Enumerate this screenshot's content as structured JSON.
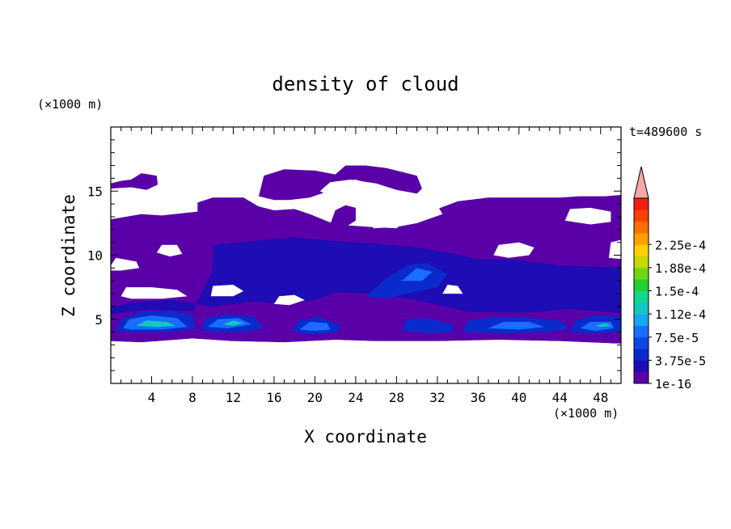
{
  "chart_data": {
    "type": "heatmap",
    "title": "density of cloud",
    "xlabel": "X coordinate",
    "ylabel": "Z coordinate",
    "x_unit": "(×1000 m)",
    "y_unit": "(×1000 m)",
    "time_label": "t=489600 s",
    "xlim": [
      0,
      50
    ],
    "ylim": [
      0,
      20
    ],
    "x_ticks": [
      4,
      8,
      12,
      16,
      20,
      24,
      28,
      32,
      36,
      40,
      44,
      48
    ],
    "y_ticks": [
      5,
      10,
      15
    ],
    "colorbar": {
      "levels": [
        "1e-16",
        "3.75e-5",
        "7.5e-5",
        "1.12e-4",
        "1.5e-4",
        "1.88e-4",
        "2.25e-4"
      ],
      "colors": [
        "#5a00a8",
        "#1e0cb4",
        "#0a2acc",
        "#0d47e6",
        "#1a6eff",
        "#16a8f0",
        "#12c8c0",
        "#10d890",
        "#20d030",
        "#70d810",
        "#c8d800",
        "#ffd000",
        "#ffa000",
        "#ff7000",
        "#ff4000",
        "#f02010"
      ],
      "extend_color": "#f4a8a8"
    },
    "regions": [
      {
        "level": 0,
        "polys": [
          [
            [
              0,
              12.8
            ],
            [
              3,
              13.2
            ],
            [
              5,
              13.1
            ],
            [
              8.5,
              13.4
            ],
            [
              8.5,
              14.1
            ],
            [
              10,
              14.5
            ],
            [
              13,
              14.5
            ],
            [
              14.5,
              13.8
            ],
            [
              16,
              13.5
            ],
            [
              18,
              13.6
            ],
            [
              19.5,
              13.2
            ],
            [
              22,
              12.4
            ],
            [
              25.5,
              12.2
            ],
            [
              28,
              12.1
            ],
            [
              29,
              12.8
            ],
            [
              32,
              13.6
            ],
            [
              34,
              14.2
            ],
            [
              37,
              14.5
            ],
            [
              40.5,
              14.5
            ],
            [
              44,
              14.5
            ],
            [
              46,
              14.6
            ],
            [
              48.5,
              14.6
            ],
            [
              50,
              14.7
            ],
            [
              50,
              3.1
            ],
            [
              44,
              3.3
            ],
            [
              38,
              3.4
            ],
            [
              32,
              3.3
            ],
            [
              26,
              3.3
            ],
            [
              22,
              3.4
            ],
            [
              17,
              3.2
            ],
            [
              12,
              3.3
            ],
            [
              8,
              3.5
            ],
            [
              3,
              3.2
            ],
            [
              0,
              3.3
            ]
          ]
        ]
      },
      {
        "level": 0,
        "polys": [
          [
            [
              0,
              15.6
            ],
            [
              1,
              15.8
            ],
            [
              2,
              15.9
            ],
            [
              3,
              16.4
            ],
            [
              4.5,
              16.2
            ],
            [
              4.6,
              15.5
            ],
            [
              3.5,
              15.1
            ],
            [
              2,
              15.3
            ],
            [
              0,
              15.2
            ]
          ],
          [
            [
              14.5,
              14.6
            ],
            [
              15,
              16.2
            ],
            [
              17,
              16.7
            ],
            [
              20,
              16.6
            ],
            [
              22,
              16.3
            ],
            [
              23,
              17.0
            ],
            [
              25,
              17.0
            ],
            [
              27,
              16.8
            ],
            [
              30,
              16.2
            ],
            [
              30.5,
              15.2
            ],
            [
              30,
              14.8
            ],
            [
              28,
              15.1
            ],
            [
              26,
              15.4
            ],
            [
              24,
              15.9
            ],
            [
              22,
              15.6
            ],
            [
              21,
              14.9
            ],
            [
              19.5,
              14.5
            ],
            [
              17.5,
              14.3
            ],
            [
              16,
              14.3
            ]
          ],
          [
            [
              21.5,
              12.4
            ],
            [
              22,
              13.5
            ],
            [
              23,
              13.9
            ],
            [
              24,
              13.7
            ],
            [
              24,
              12.7
            ],
            [
              23,
              12.2
            ]
          ]
        ]
      },
      {
        "level": 1,
        "polys": [
          [
            [
              10,
              10.8
            ],
            [
              14,
              11.1
            ],
            [
              18,
              11.4
            ],
            [
              22,
              11.1
            ],
            [
              26,
              10.9
            ],
            [
              30,
              10.6
            ],
            [
              33,
              10.2
            ],
            [
              36,
              9.7
            ],
            [
              40,
              9.6
            ],
            [
              44,
              9.2
            ],
            [
              48,
              9.1
            ],
            [
              50,
              9.0
            ],
            [
              50,
              5.5
            ],
            [
              45,
              5.8
            ],
            [
              40,
              5.5
            ],
            [
              35,
              5.6
            ],
            [
              30,
              6.5
            ],
            [
              26,
              7.0
            ],
            [
              22,
              7.1
            ],
            [
              20,
              6.5
            ],
            [
              17,
              6.2
            ],
            [
              14,
              6.4
            ],
            [
              10,
              6.0
            ],
            [
              6,
              6.5
            ],
            [
              2,
              6.3
            ],
            [
              0,
              5.9
            ],
            [
              0,
              5.4
            ],
            [
              4,
              5.8
            ],
            [
              8,
              5.6
            ],
            [
              10,
              8.8
            ]
          ]
        ]
      },
      {
        "level": 2,
        "polys": [
          [
            [
              0.5,
              4.1
            ],
            [
              1,
              5.0
            ],
            [
              3,
              5.6
            ],
            [
              6,
              5.7
            ],
            [
              8,
              5.3
            ],
            [
              8.3,
              4.3
            ],
            [
              6,
              4.0
            ],
            [
              2,
              4.0
            ]
          ],
          [
            [
              8.8,
              4.2
            ],
            [
              9.4,
              5.1
            ],
            [
              11.5,
              5.4
            ],
            [
              14,
              5.2
            ],
            [
              15,
              4.3
            ],
            [
              13,
              4.0
            ],
            [
              10,
              4.0
            ]
          ],
          [
            [
              17.8,
              4.0
            ],
            [
              18.4,
              4.9
            ],
            [
              20.5,
              5.2
            ],
            [
              22.5,
              4.5
            ],
            [
              22.3,
              4.0
            ],
            [
              20,
              3.8
            ]
          ],
          [
            [
              28.5,
              4.1
            ],
            [
              29,
              5.0
            ],
            [
              31,
              5.1
            ],
            [
              33.5,
              4.6
            ],
            [
              33.6,
              4.0
            ],
            [
              31,
              3.9
            ]
          ],
          [
            [
              34.5,
              4.0
            ],
            [
              35,
              4.9
            ],
            [
              38,
              5.2
            ],
            [
              41.5,
              5.1
            ],
            [
              44,
              4.9
            ],
            [
              45,
              4.3
            ],
            [
              43,
              4.0
            ],
            [
              39,
              3.9
            ]
          ],
          [
            [
              45,
              4.0
            ],
            [
              45.5,
              4.9
            ],
            [
              47.5,
              5.3
            ],
            [
              50,
              5.2
            ],
            [
              50,
              4.0
            ],
            [
              47,
              3.9
            ]
          ],
          [
            [
              25,
              6.8
            ],
            [
              27,
              8.2
            ],
            [
              29,
              9.2
            ],
            [
              31,
              9.4
            ],
            [
              33,
              8.5
            ],
            [
              32,
              7.5
            ],
            [
              29,
              7.0
            ],
            [
              27,
              6.6
            ]
          ]
        ]
      },
      {
        "level": 4,
        "polys": [
          [
            [
              1.2,
              4.3
            ],
            [
              1.8,
              5.0
            ],
            [
              4,
              5.3
            ],
            [
              6.5,
              5.1
            ],
            [
              7.5,
              4.4
            ],
            [
              5,
              4.2
            ],
            [
              2,
              4.2
            ]
          ],
          [
            [
              9.5,
              4.4
            ],
            [
              10.5,
              5.0
            ],
            [
              12.5,
              5.1
            ],
            [
              13.8,
              4.6
            ],
            [
              11.5,
              4.3
            ]
          ],
          [
            [
              18.5,
              4.2
            ],
            [
              19.5,
              4.8
            ],
            [
              21.2,
              4.7
            ],
            [
              21.5,
              4.2
            ],
            [
              20,
              4.1
            ]
          ],
          [
            [
              37,
              4.3
            ],
            [
              38.5,
              4.8
            ],
            [
              41,
              4.8
            ],
            [
              42.5,
              4.4
            ],
            [
              40,
              4.2
            ]
          ],
          [
            [
              46,
              4.3
            ],
            [
              47,
              4.8
            ],
            [
              49,
              4.8
            ],
            [
              49.3,
              4.3
            ],
            [
              47.5,
              4.1
            ]
          ],
          [
            [
              28.5,
              8.0
            ],
            [
              30,
              9.0
            ],
            [
              31.5,
              8.7
            ],
            [
              30.5,
              8.0
            ]
          ]
        ]
      },
      {
        "level": 6,
        "polys": [
          [
            [
              2.5,
              4.5
            ],
            [
              3.5,
              4.9
            ],
            [
              5.5,
              4.8
            ],
            [
              6.3,
              4.5
            ],
            [
              4.5,
              4.4
            ]
          ],
          [
            [
              11,
              4.6
            ],
            [
              12,
              4.9
            ],
            [
              13,
              4.7
            ],
            [
              12,
              4.5
            ]
          ],
          [
            [
              47.5,
              4.5
            ],
            [
              48.5,
              4.7
            ],
            [
              49,
              4.5
            ],
            [
              48,
              4.4
            ]
          ]
        ]
      }
    ],
    "holes": [
      [
        [
          20.5,
          15.0
        ],
        [
          21.5,
          15.7
        ],
        [
          23.5,
          15.9
        ],
        [
          26,
          15.6
        ],
        [
          28,
          15.1
        ],
        [
          29.5,
          14.4
        ],
        [
          28,
          13.8
        ],
        [
          26,
          13.6
        ],
        [
          24,
          14.0
        ],
        [
          22,
          14.4
        ]
      ],
      [
        [
          25.7,
          12.1
        ],
        [
          26,
          12.9
        ],
        [
          28,
          13.3
        ],
        [
          30,
          13.8
        ],
        [
          32,
          13.9
        ],
        [
          32.5,
          13.2
        ],
        [
          30,
          12.5
        ],
        [
          28,
          12.2
        ]
      ],
      [
        [
          44.5,
          12.7
        ],
        [
          45,
          13.6
        ],
        [
          47,
          13.7
        ],
        [
          49,
          13.4
        ],
        [
          49,
          12.6
        ],
        [
          47,
          12.4
        ]
      ],
      [
        [
          37.5,
          10.0
        ],
        [
          38,
          10.8
        ],
        [
          40,
          11.0
        ],
        [
          41.5,
          10.6
        ],
        [
          41,
          10.0
        ],
        [
          39,
          9.8
        ]
      ],
      [
        [
          48.8,
          9.8
        ],
        [
          49,
          11.0
        ],
        [
          50,
          11.2
        ],
        [
          50,
          9.7
        ]
      ],
      [
        [
          4.5,
          10.2
        ],
        [
          5.0,
          10.8
        ],
        [
          6.5,
          10.8
        ],
        [
          7,
          10.1
        ],
        [
          5.8,
          9.9
        ]
      ],
      [
        [
          0,
          9.2
        ],
        [
          0.5,
          9.8
        ],
        [
          2.5,
          9.5
        ],
        [
          2.8,
          9.0
        ],
        [
          1,
          8.8
        ],
        [
          0,
          8.8
        ]
      ],
      [
        [
          1,
          6.8
        ],
        [
          1.5,
          7.5
        ],
        [
          4,
          7.5
        ],
        [
          6.5,
          7.3
        ],
        [
          7.5,
          6.8
        ],
        [
          5,
          6.6
        ],
        [
          2,
          6.6
        ]
      ],
      [
        [
          9.8,
          6.8
        ],
        [
          10,
          7.6
        ],
        [
          12,
          7.7
        ],
        [
          13,
          7.2
        ],
        [
          12,
          6.8
        ]
      ],
      [
        [
          16,
          6.2
        ],
        [
          16.5,
          6.8
        ],
        [
          18,
          6.9
        ],
        [
          19,
          6.5
        ],
        [
          17.5,
          6.1
        ]
      ],
      [
        [
          32.5,
          7.0
        ],
        [
          33,
          7.7
        ],
        [
          34,
          7.6
        ],
        [
          34.5,
          7.0
        ]
      ],
      [
        [
          0,
          2.0
        ],
        [
          50,
          2.0
        ],
        [
          50,
          3.1
        ],
        [
          44,
          3.3
        ],
        [
          38,
          3.4
        ],
        [
          32,
          3.3
        ],
        [
          26,
          3.3
        ],
        [
          22,
          3.4
        ],
        [
          17,
          3.2
        ],
        [
          12,
          3.3
        ],
        [
          8,
          3.5
        ],
        [
          3,
          3.2
        ],
        [
          0,
          3.3
        ]
      ]
    ]
  }
}
